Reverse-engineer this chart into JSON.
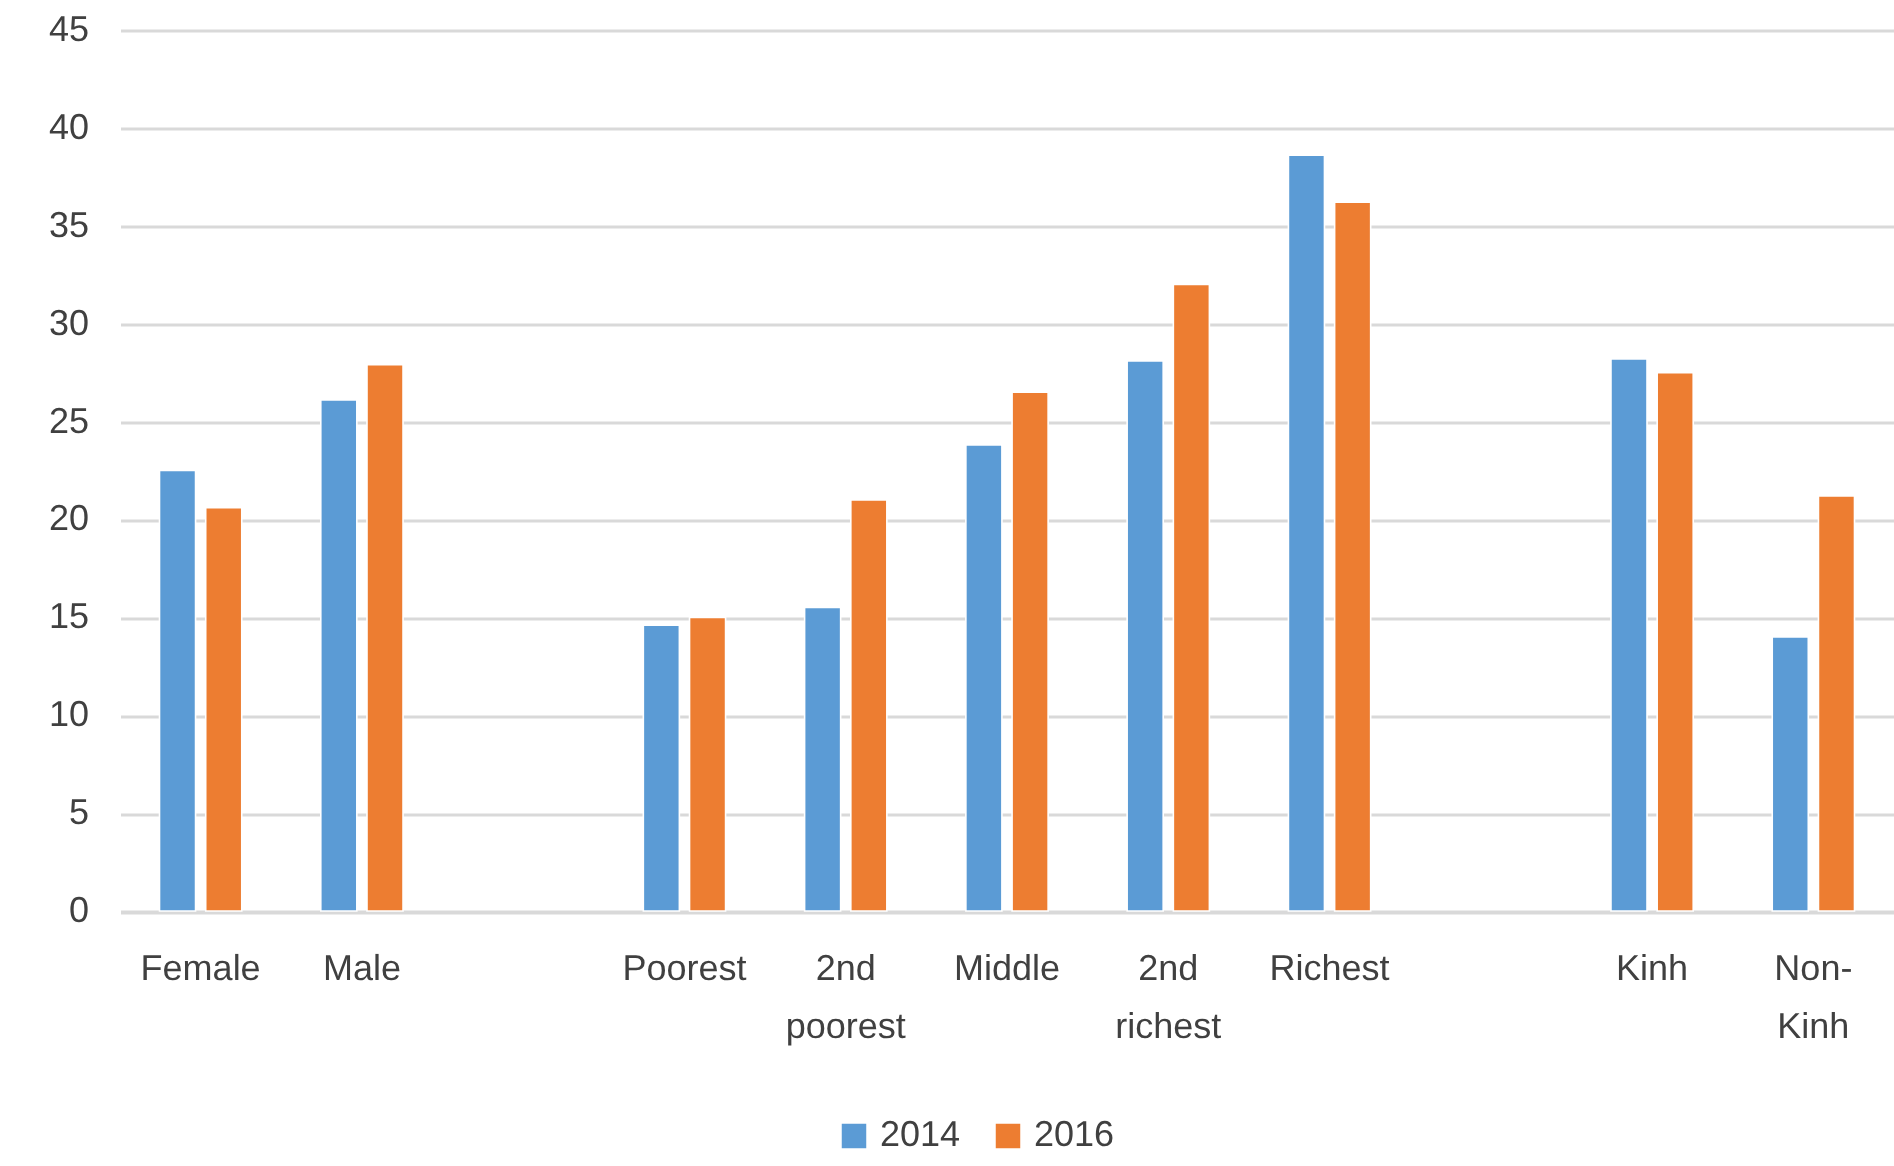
{
  "chart_data": {
    "type": "bar",
    "categories": [
      "Female",
      "Male",
      null,
      "Poorest",
      "2nd poorest",
      "Middle",
      "2nd richest",
      "Richest",
      null,
      "Kinh",
      "Non-Kinh"
    ],
    "series": [
      {
        "name": "2014",
        "color": "#5b9bd5",
        "values": [
          22.5,
          26.1,
          null,
          14.6,
          15.5,
          23.8,
          28.1,
          38.6,
          null,
          28.2,
          14.0
        ]
      },
      {
        "name": "2016",
        "color": "#ed7d31",
        "values": [
          20.6,
          27.9,
          null,
          15.0,
          21.0,
          26.5,
          32.0,
          36.2,
          null,
          27.5,
          21.2
        ]
      }
    ],
    "ylim": [
      0,
      45
    ],
    "yticks": [
      0,
      5,
      10,
      15,
      20,
      25,
      30,
      35,
      40,
      45
    ],
    "grid": "y",
    "legend": "bottom"
  }
}
